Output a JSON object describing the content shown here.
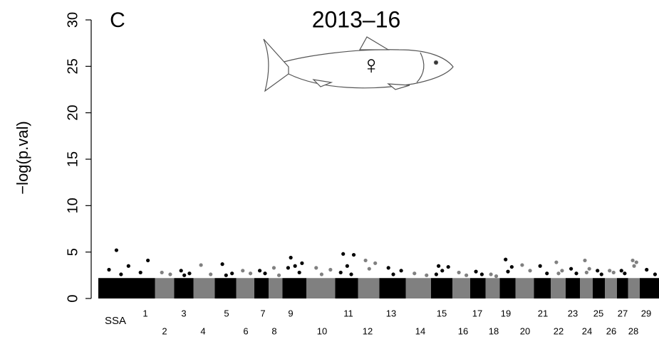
{
  "chart_data": {
    "type": "manhattan",
    "panel_label": "C",
    "title": "2013–16",
    "symbol": "♀",
    "y_label": "−log(p.val)",
    "x_prefix": "SSA",
    "ylim": [
      0,
      30
    ],
    "yticks": [
      0,
      5,
      10,
      15,
      20,
      25,
      30
    ],
    "chromosomes": [
      {
        "name": "1",
        "color": "#000000",
        "bulk": 2.2,
        "values": [
          5.2,
          4.1,
          3.5,
          3.1,
          2.8,
          2.6
        ]
      },
      {
        "name": "2",
        "color": "#808080",
        "bulk": 2.2,
        "values": [
          2.8,
          2.6
        ]
      },
      {
        "name": "3",
        "color": "#000000",
        "bulk": 2.2,
        "values": [
          3.0,
          2.7,
          2.5
        ]
      },
      {
        "name": "4",
        "color": "#808080",
        "bulk": 2.2,
        "values": [
          3.6,
          2.6
        ]
      },
      {
        "name": "5",
        "color": "#000000",
        "bulk": 2.2,
        "values": [
          3.7,
          2.7,
          2.5
        ]
      },
      {
        "name": "6",
        "color": "#808080",
        "bulk": 2.2,
        "values": [
          3.0,
          2.7
        ]
      },
      {
        "name": "7",
        "color": "#000000",
        "bulk": 2.2,
        "values": [
          3.0,
          2.7
        ]
      },
      {
        "name": "8",
        "color": "#808080",
        "bulk": 2.2,
        "values": [
          3.3,
          2.5
        ]
      },
      {
        "name": "9",
        "color": "#000000",
        "bulk": 2.2,
        "values": [
          4.4,
          3.8,
          3.5,
          3.3,
          2.8
        ]
      },
      {
        "name": "10",
        "color": "#808080",
        "bulk": 2.2,
        "values": [
          3.3,
          3.1,
          2.6
        ]
      },
      {
        "name": "11",
        "color": "#000000",
        "bulk": 2.2,
        "values": [
          4.8,
          4.7,
          3.5,
          2.8,
          2.6
        ]
      },
      {
        "name": "12",
        "color": "#808080",
        "bulk": 2.2,
        "values": [
          4.1,
          3.8,
          3.2
        ]
      },
      {
        "name": "13",
        "color": "#000000",
        "bulk": 2.2,
        "values": [
          3.3,
          3.0,
          2.6
        ]
      },
      {
        "name": "14",
        "color": "#808080",
        "bulk": 2.2,
        "values": [
          2.7,
          2.5
        ]
      },
      {
        "name": "15",
        "color": "#000000",
        "bulk": 2.2,
        "values": [
          3.5,
          3.4,
          3.0,
          2.6
        ]
      },
      {
        "name": "16",
        "color": "#808080",
        "bulk": 2.2,
        "values": [
          2.8,
          2.5
        ]
      },
      {
        "name": "17",
        "color": "#000000",
        "bulk": 2.2,
        "values": [
          2.9,
          2.6
        ]
      },
      {
        "name": "18",
        "color": "#808080",
        "bulk": 2.2,
        "values": [
          2.6,
          2.4
        ]
      },
      {
        "name": "19",
        "color": "#000000",
        "bulk": 2.2,
        "values": [
          4.2,
          3.4,
          2.9
        ]
      },
      {
        "name": "20",
        "color": "#808080",
        "bulk": 2.2,
        "values": [
          3.6,
          3.0
        ]
      },
      {
        "name": "21",
        "color": "#000000",
        "bulk": 2.2,
        "values": [
          3.5,
          2.7
        ]
      },
      {
        "name": "22",
        "color": "#808080",
        "bulk": 2.2,
        "values": [
          3.9,
          3.0,
          2.7
        ]
      },
      {
        "name": "23",
        "color": "#000000",
        "bulk": 2.2,
        "values": [
          3.2,
          2.7
        ]
      },
      {
        "name": "24",
        "color": "#808080",
        "bulk": 2.2,
        "values": [
          4.1,
          3.2,
          2.8
        ]
      },
      {
        "name": "25",
        "color": "#000000",
        "bulk": 2.2,
        "values": [
          3.0,
          2.6
        ]
      },
      {
        "name": "26",
        "color": "#808080",
        "bulk": 2.2,
        "values": [
          3.0,
          2.8
        ]
      },
      {
        "name": "27",
        "color": "#000000",
        "bulk": 2.2,
        "values": [
          3.0,
          2.7
        ]
      },
      {
        "name": "28",
        "color": "#808080",
        "bulk": 2.2,
        "values": [
          4.1,
          3.9,
          3.5
        ]
      },
      {
        "name": "29",
        "color": "#000000",
        "bulk": 2.2,
        "values": [
          3.1,
          2.6
        ]
      }
    ]
  }
}
